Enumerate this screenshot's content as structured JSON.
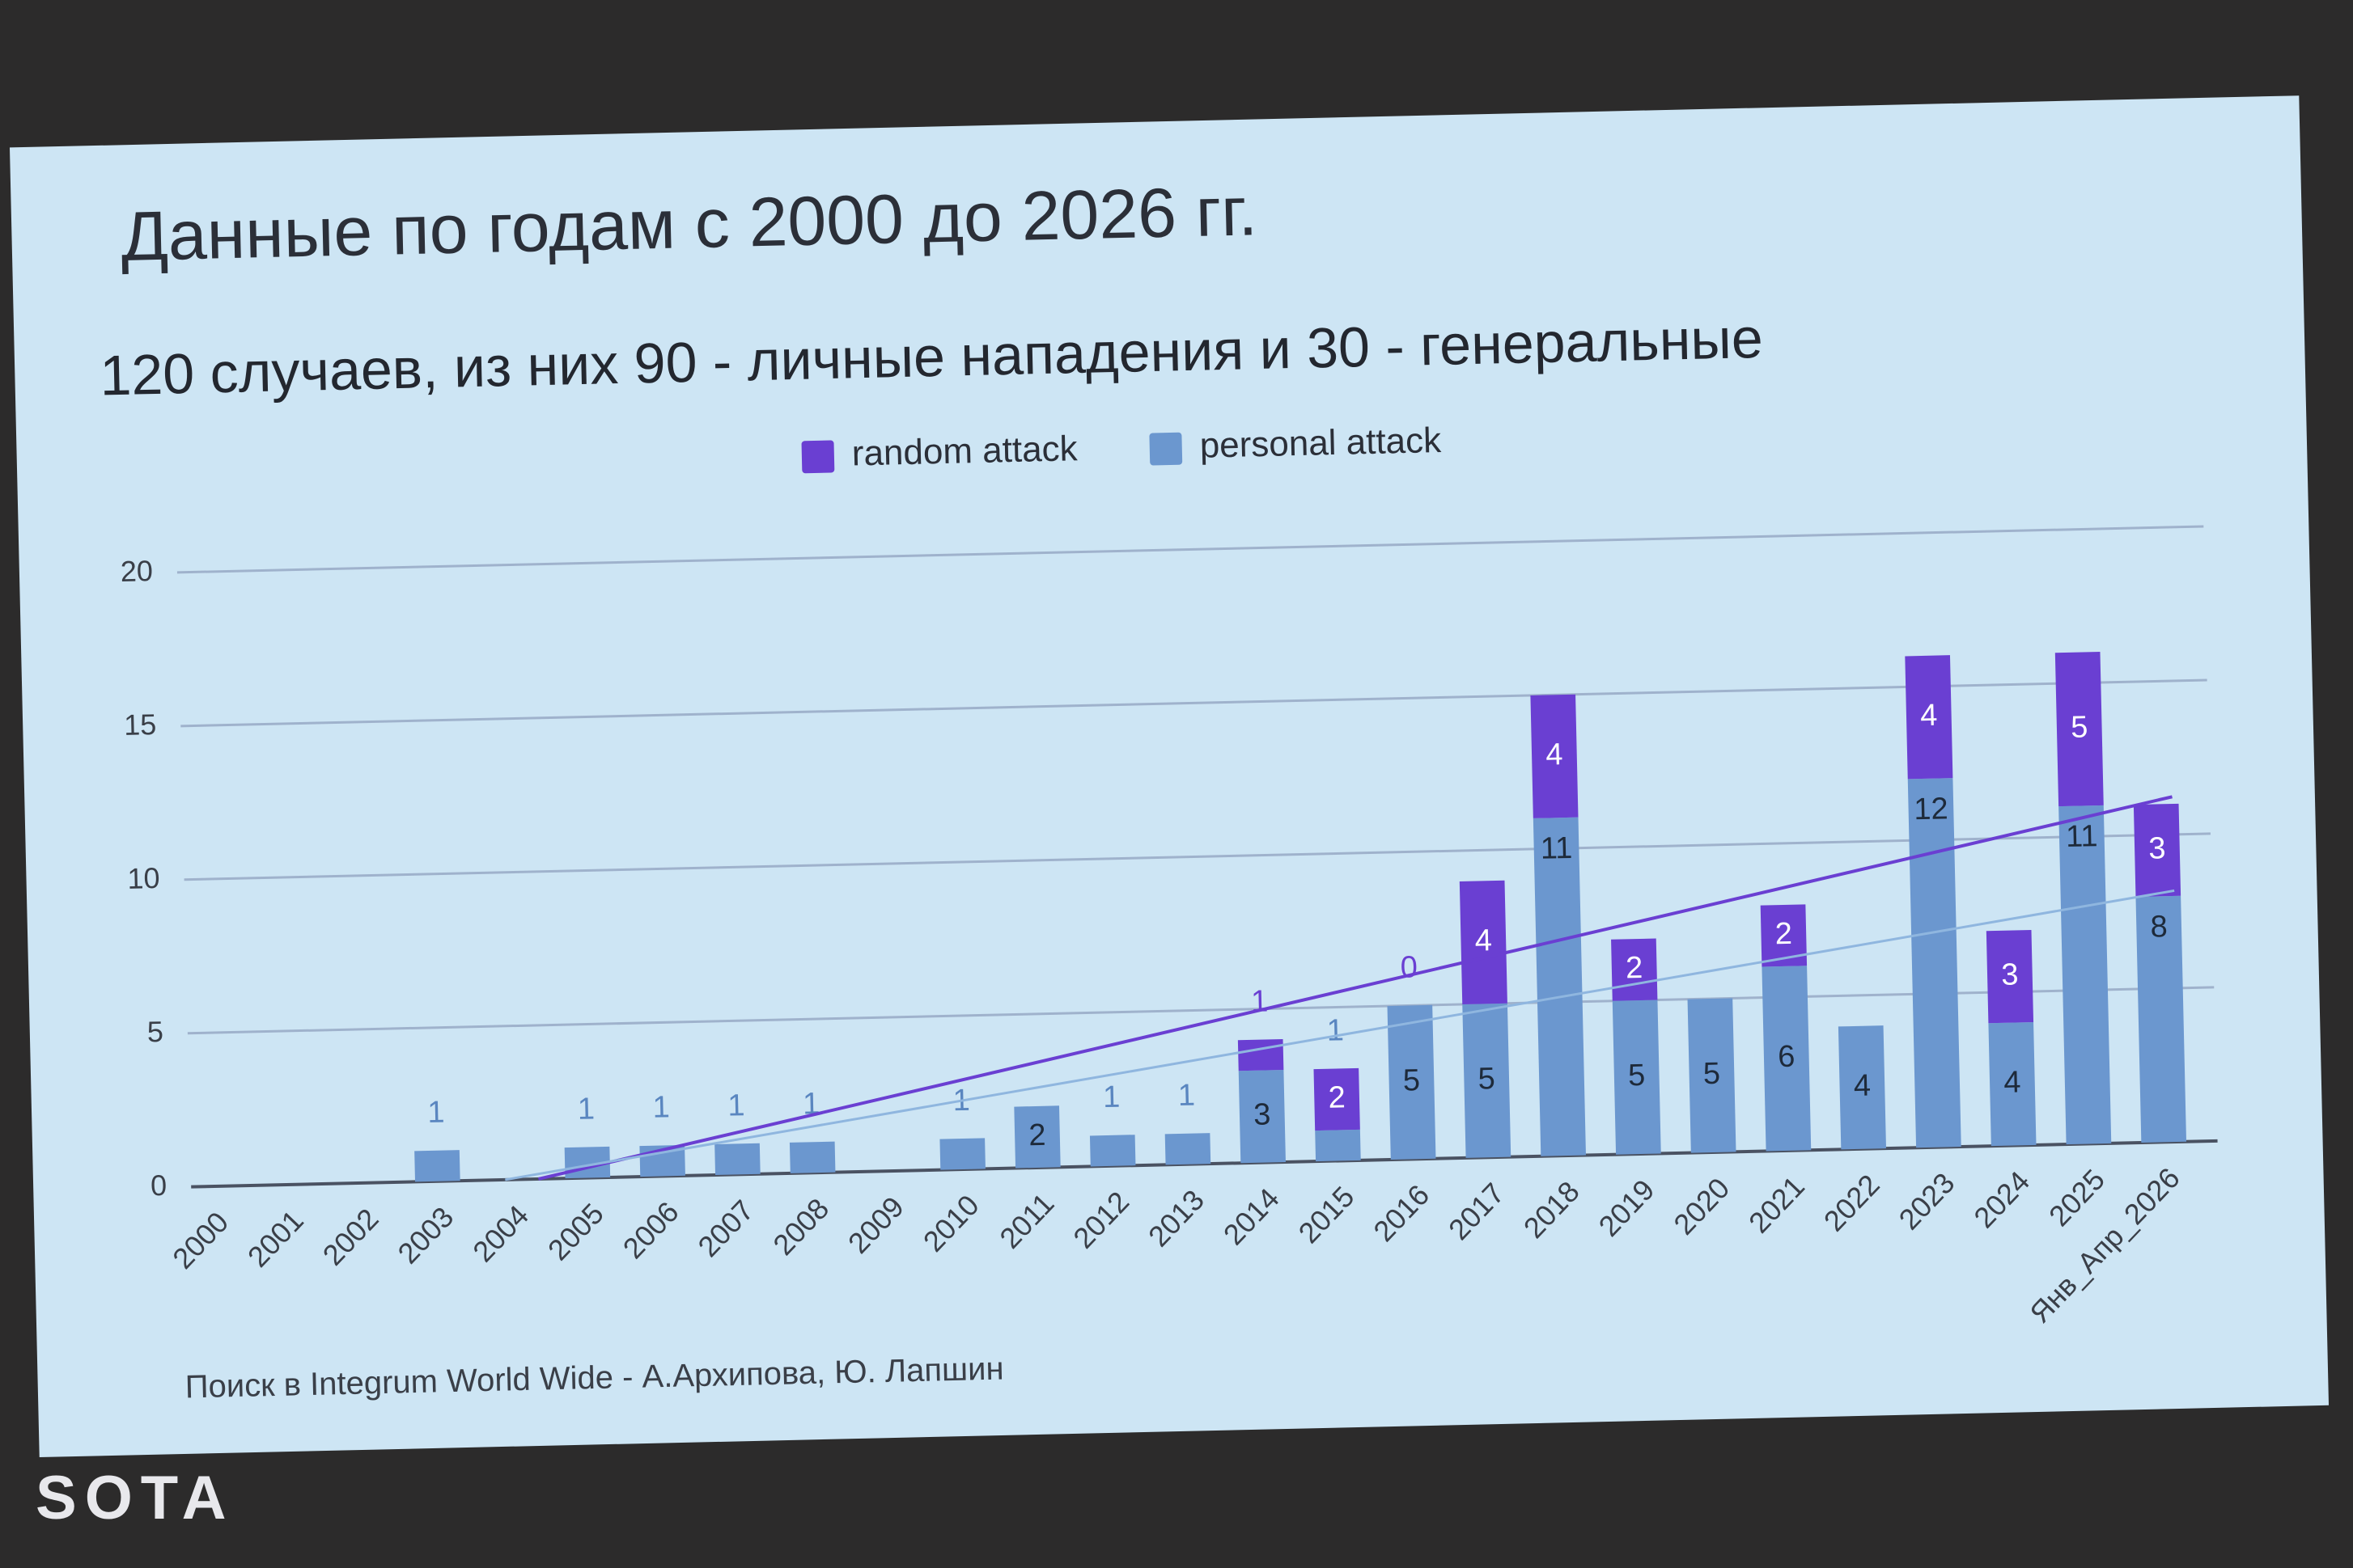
{
  "watermark": "SOTA",
  "chart_data": {
    "type": "bar",
    "stacked": true,
    "title": "Данные по годам с 2000 до 2026 гг.",
    "subtitle": "120 случаев, из них 90 - личные нападения и 30 - генеральные",
    "source": "Поиск в Integrum World Wide - А.Архипова, Ю. Лапшин",
    "categories": [
      "2000",
      "2001",
      "2002",
      "2003",
      "2004",
      "2005",
      "2006",
      "2007",
      "2008",
      "2009",
      "2010",
      "2011",
      "2012",
      "2013",
      "2014",
      "2015",
      "2016",
      "2017",
      "2018",
      "2019",
      "2020",
      "2021",
      "2022",
      "2023",
      "2024",
      "2025",
      "Янв_Апр_2026"
    ],
    "series": [
      {
        "name": "random attack",
        "color": "#6a3fd2",
        "values": [
          null,
          null,
          null,
          null,
          null,
          null,
          null,
          null,
          null,
          null,
          null,
          null,
          null,
          null,
          1,
          2,
          0,
          4,
          4,
          2,
          null,
          2,
          null,
          4,
          3,
          5,
          3
        ]
      },
      {
        "name": "personal attack",
        "color": "#6b97cf",
        "values": [
          null,
          null,
          null,
          1,
          null,
          1,
          1,
          1,
          1,
          null,
          1,
          2,
          1,
          1,
          3,
          1,
          5,
          5,
          11,
          5,
          5,
          6,
          4,
          12,
          4,
          11,
          8
        ]
      }
    ],
    "ylim": [
      0,
      20
    ],
    "yticks": [
      0,
      5,
      10,
      15,
      20
    ],
    "grid": true,
    "legend": "top",
    "trendlines": true
  }
}
